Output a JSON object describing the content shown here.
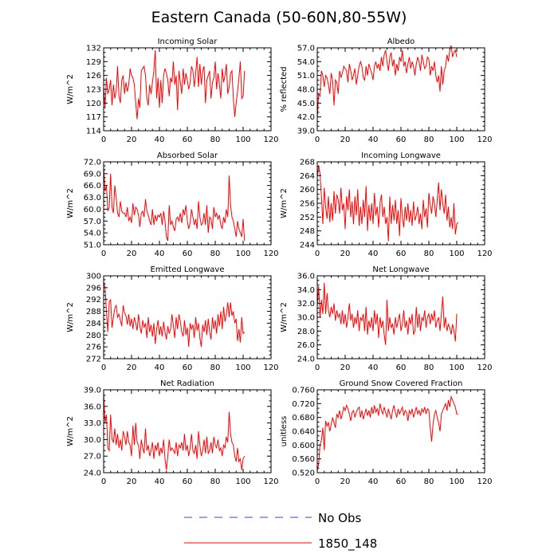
{
  "title": "Eastern Canada (50-60N,80-55W)",
  "colors": {
    "model": "#ff0000",
    "obs": "#3b3bff",
    "axis": "#000000"
  },
  "legend": [
    {
      "label": "No Obs",
      "style": "dashed",
      "color": "#3b3bff"
    },
    {
      "label": "1850_148",
      "style": "solid",
      "color": "#ff0000"
    }
  ],
  "chart_data": [
    {
      "type": "line",
      "title": "Incoming Solar",
      "ylabel": "W/m^2",
      "xlim": [
        0,
        120
      ],
      "xticks": [
        "0",
        "20",
        "40",
        "60",
        "80",
        "100",
        "120"
      ],
      "ylim": [
        114,
        132
      ],
      "yticks": [
        "114",
        "117",
        "120",
        "123",
        "126",
        "129",
        "132"
      ],
      "series": [
        {
          "values": [
            123.5,
            119.0,
            125.5,
            122.0,
            123.0,
            125.0,
            119.5,
            124.0,
            121.0,
            122.5,
            128.0,
            121.5,
            120.0,
            125.0,
            126.0,
            122.0,
            124.5,
            122.5,
            124.0,
            127.5,
            126.0,
            125.5,
            124.0,
            120.0,
            116.5,
            121.0,
            119.0,
            127.0,
            127.5,
            128.0,
            126.0,
            121.0,
            119.5,
            124.0,
            122.0,
            124.5,
            127.0,
            131.5,
            121.0,
            125.5,
            119.0,
            125.0,
            120.0,
            126.0,
            127.5,
            126.5,
            125.0,
            121.5,
            125.5,
            124.5,
            129.0,
            124.0,
            126.0,
            118.5,
            127.0,
            124.5,
            122.0,
            127.5,
            124.0,
            126.5,
            125.0,
            123.0,
            124.5,
            128.0,
            127.0,
            123.5,
            126.5,
            130.0,
            123.5,
            128.5,
            124.0,
            127.0,
            128.0,
            120.0,
            125.0,
            126.0,
            127.0,
            121.0,
            124.5,
            125.5,
            129.0,
            123.0,
            126.5,
            124.0,
            121.0,
            127.5,
            124.5,
            126.0,
            128.5,
            122.0,
            123.5,
            126.5,
            127.0,
            121.0,
            117.0,
            120.0,
            122.5,
            125.5,
            129.0,
            121.0,
            121.5,
            127.0
          ]
        }
      ]
    },
    {
      "type": "line",
      "title": "Albedo",
      "ylabel": "% reflected",
      "xlim": [
        0,
        120
      ],
      "xticks": [
        "0",
        "20",
        "40",
        "60",
        "80",
        "100",
        "120"
      ],
      "ylim": [
        39,
        57
      ],
      "yticks": [
        "39.0",
        "42.0",
        "45.0",
        "48.0",
        "51.0",
        "54.0",
        "57.0"
      ],
      "series": [
        {
          "values": [
            41.5,
            47.0,
            46.5,
            52.0,
            51.0,
            48.5,
            51.0,
            50.5,
            49.0,
            47.0,
            51.5,
            50.0,
            44.5,
            50.0,
            49.5,
            47.0,
            52.0,
            50.5,
            51.5,
            53.0,
            52.5,
            52.0,
            49.5,
            53.5,
            52.0,
            50.0,
            51.0,
            52.5,
            49.0,
            51.0,
            53.0,
            54.0,
            53.0,
            50.5,
            50.0,
            53.0,
            51.0,
            53.5,
            52.5,
            51.5,
            50.0,
            53.0,
            54.0,
            52.5,
            53.5,
            52.0,
            55.0,
            53.0,
            55.5,
            56.5,
            54.0,
            52.0,
            55.0,
            56.0,
            53.0,
            54.5,
            51.0,
            53.5,
            52.0,
            55.0,
            54.0,
            56.5,
            53.0,
            54.0,
            51.5,
            53.5,
            55.0,
            52.5,
            54.0,
            53.0,
            51.0,
            53.5,
            55.0,
            54.0,
            52.0,
            55.5,
            54.0,
            52.5,
            53.0,
            55.0,
            54.5,
            51.0,
            53.0,
            52.0,
            54.0,
            51.0,
            49.5,
            51.0,
            47.5,
            53.0,
            49.0,
            52.0,
            53.0,
            55.5,
            54.0,
            56.5,
            57.5,
            55.0,
            56.0,
            56.5,
            55.0
          ]
        }
      ]
    },
    {
      "type": "line",
      "title": "Absorbed Solar",
      "ylabel": "W/m^2",
      "xlim": [
        0,
        120
      ],
      "xticks": [
        "0",
        "20",
        "40",
        "60",
        "80",
        "100",
        "120"
      ],
      "ylim": [
        51,
        72
      ],
      "yticks": [
        "51.0",
        "54.0",
        "57.0",
        "60.0",
        "63.0",
        "66.0",
        "69.0",
        "72.0"
      ],
      "series": [
        {
          "values": [
            71.0,
            64.5,
            66.0,
            59.5,
            60.5,
            69.0,
            60.5,
            59.0,
            66.0,
            63.0,
            59.0,
            58.0,
            62.0,
            59.5,
            59.0,
            59.0,
            58.0,
            60.5,
            57.0,
            58.0,
            56.5,
            61.5,
            58.5,
            60.5,
            60.0,
            58.5,
            55.5,
            59.0,
            59.5,
            58.0,
            62.5,
            59.5,
            58.5,
            57.0,
            56.0,
            60.0,
            56.0,
            58.5,
            57.0,
            58.5,
            58.0,
            59.0,
            56.0,
            59.5,
            57.0,
            53.0,
            52.0,
            61.0,
            56.0,
            57.0,
            55.5,
            54.5,
            57.5,
            58.0,
            57.0,
            59.0,
            56.5,
            60.0,
            58.5,
            61.0,
            57.0,
            55.0,
            56.5,
            60.0,
            58.0,
            56.0,
            57.5,
            55.0,
            62.0,
            58.0,
            56.0,
            56.5,
            59.0,
            56.0,
            61.0,
            54.0,
            58.0,
            57.5,
            55.0,
            60.5,
            58.0,
            59.0,
            57.5,
            58.5,
            56.0,
            55.0,
            58.0,
            56.5,
            60.0,
            58.0,
            68.5,
            61.0,
            58.0,
            57.0,
            55.0,
            53.0,
            57.0,
            55.0,
            54.0,
            53.0,
            57.5,
            52.0
          ]
        }
      ]
    },
    {
      "type": "line",
      "title": "Incoming Longwave",
      "ylabel": "W/m^2",
      "xlim": [
        0,
        120
      ],
      "xticks": [
        "0",
        "20",
        "40",
        "60",
        "80",
        "100",
        "120"
      ],
      "ylim": [
        244,
        268
      ],
      "yticks": [
        "244",
        "248",
        "252",
        "256",
        "260",
        "264",
        "268"
      ],
      "series": [
        {
          "values": [
            263.5,
            267.0,
            264.5,
            258.0,
            250.0,
            260.5,
            255.0,
            251.5,
            258.0,
            250.5,
            256.0,
            251.0,
            259.5,
            253.0,
            258.5,
            257.0,
            253.0,
            260.5,
            254.0,
            256.0,
            248.5,
            258.0,
            254.0,
            260.0,
            252.0,
            256.5,
            250.0,
            258.0,
            252.5,
            260.0,
            249.5,
            255.0,
            250.0,
            257.0,
            252.0,
            261.0,
            248.0,
            255.5,
            251.0,
            256.0,
            250.0,
            259.0,
            252.5,
            255.0,
            249.0,
            256.0,
            258.5,
            252.0,
            255.0,
            250.0,
            252.0,
            245.0,
            258.0,
            250.0,
            255.5,
            251.0,
            257.0,
            250.0,
            254.0,
            246.5,
            257.5,
            252.0,
            249.0,
            255.0,
            251.0,
            256.0,
            250.5,
            254.0,
            249.5,
            256.5,
            251.0,
            252.5,
            255.0,
            250.0,
            253.0,
            248.5,
            257.0,
            252.0,
            254.5,
            249.0,
            259.0,
            255.5,
            253.0,
            258.0,
            256.0,
            252.0,
            257.0,
            262.0,
            254.0,
            260.0,
            256.0,
            253.0,
            258.5,
            251.0,
            255.0,
            249.0,
            252.0,
            248.5,
            256.0,
            247.0,
            250.0,
            250.5
          ]
        }
      ]
    },
    {
      "type": "line",
      "title": "Emitted Longwave",
      "ylabel": "W/m^2",
      "xlim": [
        0,
        120
      ],
      "xticks": [
        "0",
        "20",
        "40",
        "60",
        "80",
        "100",
        "120"
      ],
      "ylim": [
        272,
        300
      ],
      "yticks": [
        "272",
        "276",
        "280",
        "284",
        "288",
        "292",
        "296",
        "300"
      ],
      "series": [
        {
          "values": [
            298.0,
            296.0,
            288.0,
            281.0,
            291.0,
            292.0,
            282.5,
            286.0,
            289.0,
            290.0,
            286.0,
            287.0,
            285.0,
            283.0,
            290.0,
            287.5,
            286.5,
            283.5,
            287.0,
            283.0,
            285.5,
            282.0,
            286.0,
            284.0,
            281.5,
            287.0,
            283.0,
            280.5,
            285.0,
            282.5,
            284.0,
            279.0,
            286.0,
            281.0,
            283.5,
            279.5,
            284.0,
            277.0,
            282.0,
            285.0,
            280.0,
            283.0,
            279.5,
            284.5,
            281.0,
            278.5,
            283.0,
            280.5,
            282.0,
            287.0,
            283.0,
            279.0,
            286.0,
            282.0,
            287.0,
            284.5,
            281.0,
            279.5,
            285.0,
            280.0,
            282.5,
            276.0,
            284.0,
            282.0,
            283.5,
            279.0,
            286.0,
            281.5,
            284.0,
            279.0,
            276.0,
            283.5,
            281.0,
            285.0,
            280.0,
            285.5,
            281.0,
            278.5,
            286.0,
            282.0,
            285.0,
            280.5,
            287.0,
            283.0,
            288.0,
            282.0,
            289.5,
            284.5,
            287.0,
            291.0,
            286.0,
            291.0,
            286.5,
            288.0,
            284.0,
            285.5,
            278.0,
            282.0,
            277.5,
            286.0,
            280.5,
            281.0
          ]
        }
      ]
    },
    {
      "type": "line",
      "title": "Net Longwave",
      "ylabel": "W/m^2",
      "xlim": [
        0,
        120
      ],
      "xticks": [
        "0",
        "20",
        "40",
        "60",
        "80",
        "100",
        "120"
      ],
      "ylim": [
        24,
        36
      ],
      "yticks": [
        "24.0",
        "26.0",
        "28.0",
        "30.0",
        "32.0",
        "34.0",
        "36.0"
      ],
      "series": [
        {
          "values": [
            31.5,
            34.5,
            30.0,
            32.5,
            30.5,
            35.0,
            30.5,
            33.5,
            31.0,
            30.0,
            31.5,
            30.5,
            32.0,
            29.5,
            31.0,
            30.0,
            30.5,
            29.0,
            31.0,
            29.0,
            30.5,
            28.5,
            30.0,
            32.0,
            29.5,
            30.5,
            28.5,
            30.0,
            29.0,
            31.0,
            28.0,
            30.0,
            29.5,
            30.5,
            28.0,
            31.5,
            27.5,
            29.5,
            28.5,
            30.0,
            28.0,
            31.0,
            29.0,
            30.5,
            27.0,
            30.0,
            28.5,
            29.5,
            27.5,
            26.0,
            32.5,
            28.0,
            30.0,
            28.5,
            29.0,
            27.5,
            30.0,
            28.5,
            29.5,
            30.5,
            28.0,
            29.0,
            31.0,
            28.5,
            29.5,
            27.5,
            30.0,
            29.0,
            30.5,
            27.5,
            28.0,
            31.5,
            28.5,
            30.5,
            28.0,
            30.0,
            29.5,
            31.0,
            28.5,
            30.0,
            30.5,
            29.0,
            30.5,
            29.5,
            31.0,
            28.5,
            29.5,
            30.0,
            28.0,
            30.5,
            33.0,
            28.5,
            30.0,
            28.0,
            29.0,
            28.5,
            27.5,
            29.0,
            28.0,
            26.5,
            30.5
          ]
        }
      ]
    },
    {
      "type": "line",
      "title": "Net Radiation",
      "ylabel": "W/m^2",
      "xlim": [
        0,
        120
      ],
      "xticks": [
        "0",
        "20",
        "40",
        "60",
        "80",
        "100",
        "120"
      ],
      "ylim": [
        24,
        39
      ],
      "yticks": [
        "24.0",
        "27.0",
        "30.0",
        "33.0",
        "36.0",
        "39.0"
      ],
      "series": [
        {
          "values": [
            38.5,
            33.0,
            34.5,
            28.5,
            28.0,
            34.5,
            30.0,
            29.5,
            32.0,
            29.0,
            31.0,
            28.5,
            30.0,
            28.0,
            31.5,
            30.5,
            29.0,
            31.5,
            29.5,
            29.0,
            27.0,
            32.5,
            29.0,
            33.0,
            29.5,
            29.0,
            26.5,
            30.0,
            28.5,
            27.5,
            32.0,
            28.0,
            29.0,
            27.0,
            28.0,
            29.5,
            26.5,
            29.0,
            28.0,
            29.5,
            27.0,
            28.5,
            27.5,
            30.0,
            26.5,
            24.5,
            27.0,
            30.0,
            28.0,
            28.5,
            28.0,
            27.5,
            29.5,
            27.0,
            29.0,
            28.5,
            29.5,
            28.0,
            31.0,
            28.0,
            29.0,
            27.0,
            28.5,
            31.0,
            28.0,
            27.5,
            29.0,
            26.5,
            31.5,
            29.0,
            27.0,
            28.0,
            30.0,
            27.5,
            30.5,
            27.5,
            28.0,
            29.5,
            27.5,
            30.5,
            29.0,
            28.5,
            30.0,
            28.0,
            28.5,
            27.0,
            29.0,
            28.5,
            30.5,
            29.5,
            35.0,
            31.0,
            29.5,
            29.0,
            27.0,
            26.0,
            28.5,
            26.0,
            26.5,
            24.5,
            26.5,
            27.0
          ]
        }
      ]
    },
    {
      "type": "line",
      "title": "Ground Snow Covered Fraction",
      "ylabel": "unitless",
      "xlim": [
        0,
        120
      ],
      "xticks": [
        "0",
        "20",
        "40",
        "60",
        "80",
        "100",
        "120"
      ],
      "ylim": [
        0.52,
        0.76
      ],
      "yticks": [
        "0.520",
        "0.560",
        "0.600",
        "0.640",
        "0.680",
        "0.720",
        "0.760"
      ],
      "series": [
        {
          "values": [
            0.525,
            0.545,
            0.6,
            0.615,
            0.65,
            0.585,
            0.67,
            0.655,
            0.665,
            0.64,
            0.66,
            0.68,
            0.665,
            0.65,
            0.69,
            0.68,
            0.7,
            0.675,
            0.69,
            0.71,
            0.7,
            0.715,
            0.705,
            0.69,
            0.67,
            0.695,
            0.7,
            0.68,
            0.695,
            0.705,
            0.71,
            0.68,
            0.7,
            0.675,
            0.69,
            0.705,
            0.685,
            0.7,
            0.68,
            0.71,
            0.69,
            0.715,
            0.695,
            0.705,
            0.685,
            0.72,
            0.7,
            0.69,
            0.71,
            0.695,
            0.68,
            0.705,
            0.69,
            0.675,
            0.7,
            0.715,
            0.695,
            0.68,
            0.705,
            0.69,
            0.7,
            0.71,
            0.685,
            0.7,
            0.695,
            0.67,
            0.7,
            0.69,
            0.705,
            0.68,
            0.695,
            0.71,
            0.69,
            0.7,
            0.685,
            0.705,
            0.695,
            0.71,
            0.69,
            0.705,
            0.7,
            0.65,
            0.61,
            0.66,
            0.69,
            0.7,
            0.68,
            0.665,
            0.64,
            0.69,
            0.7,
            0.71,
            0.72,
            0.7,
            0.73,
            0.71,
            0.74,
            0.73,
            0.72,
            0.71,
            0.69,
            0.69
          ]
        }
      ]
    }
  ]
}
